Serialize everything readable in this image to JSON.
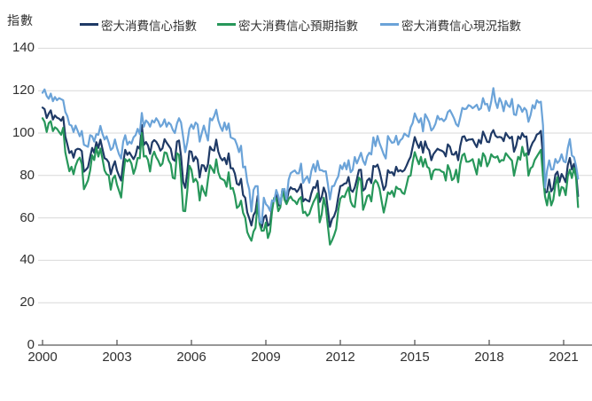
{
  "style": {
    "background": "#ffffff",
    "gridline_color": "#d9d9d9",
    "axis_color": "#595959",
    "text_color": "#333333"
  },
  "chart_data": {
    "type": "line",
    "title": "",
    "xlabel": "",
    "ylabel": "指數",
    "ylim": [
      0,
      140
    ],
    "y_ticks": [
      140,
      120,
      100,
      80,
      60,
      40,
      20,
      0
    ],
    "x_ticks": [
      2000,
      2003,
      2006,
      2009,
      2012,
      2015,
      2018,
      2021
    ],
    "grid": "horizontal",
    "legend_position": "top",
    "frequency": "monthly",
    "start_year": 2000,
    "series": [
      {
        "name": "密大消費信心指數",
        "color": "#1f3a66",
        "values": [
          112.0,
          111.3,
          107.1,
          109.2,
          110.7,
          106.4,
          108.3,
          107.3,
          106.8,
          105.8,
          107.6,
          98.4,
          94.7,
          90.6,
          91.5,
          88.4,
          92.0,
          92.6,
          92.4,
          91.5,
          81.8,
          82.7,
          83.9,
          88.8,
          93.0,
          90.7,
          95.7,
          93.0,
          96.9,
          92.4,
          88.1,
          87.6,
          86.1,
          80.6,
          84.2,
          86.7,
          82.4,
          79.9,
          77.6,
          86.0,
          92.1,
          89.7,
          90.9,
          89.3,
          87.7,
          89.6,
          93.7,
          92.6,
          103.8,
          94.4,
          95.8,
          94.2,
          90.2,
          95.6,
          96.7,
          95.9,
          94.2,
          91.7,
          92.8,
          97.1,
          95.5,
          94.1,
          92.6,
          87.7,
          86.9,
          96.0,
          96.5,
          89.1,
          76.9,
          74.2,
          81.6,
          91.5,
          91.2,
          86.7,
          88.9,
          87.4,
          79.1,
          84.9,
          84.7,
          82.0,
          85.4,
          93.6,
          92.1,
          91.7,
          96.9,
          91.3,
          88.4,
          87.1,
          88.3,
          85.3,
          90.4,
          83.4,
          83.4,
          80.9,
          76.1,
          75.5,
          78.4,
          70.8,
          69.5,
          62.6,
          59.8,
          56.4,
          61.2,
          63.0,
          70.3,
          57.6,
          55.3,
          60.1,
          61.2,
          56.3,
          57.3,
          65.1,
          68.7,
          70.8,
          66.0,
          65.7,
          73.5,
          70.6,
          67.4,
          72.5,
          74.4,
          73.6,
          73.6,
          72.2,
          73.6,
          76.0,
          67.8,
          68.9,
          68.2,
          67.7,
          71.6,
          74.5,
          74.2,
          77.5,
          67.5,
          69.8,
          74.3,
          71.5,
          63.7,
          55.8,
          59.5,
          60.8,
          63.7,
          69.9,
          75.0,
          75.3,
          76.2,
          76.4,
          79.3,
          73.2,
          72.3,
          74.3,
          78.3,
          82.6,
          82.7,
          72.9,
          73.8,
          77.6,
          78.6,
          76.4,
          84.5,
          84.1,
          85.1,
          82.1,
          77.5,
          73.2,
          75.1,
          82.5,
          81.2,
          81.6,
          80.0,
          84.1,
          81.9,
          82.5,
          81.8,
          82.5,
          84.6,
          86.9,
          88.8,
          93.6,
          98.1,
          95.4,
          93.0,
          95.9,
          90.7,
          96.1,
          93.1,
          91.9,
          87.2,
          90.0,
          91.3,
          92.6,
          92.0,
          91.7,
          91.0,
          89.0,
          94.7,
          93.5,
          90.0,
          89.8,
          91.2,
          87.2,
          93.8,
          98.2,
          98.5,
          96.3,
          96.9,
          97.0,
          97.1,
          95.0,
          93.4,
          96.8,
          95.1,
          100.7,
          98.5,
          95.9,
          95.7,
          99.7,
          101.4,
          98.8,
          98.0,
          98.2,
          97.9,
          96.2,
          100.1,
          98.6,
          97.5,
          98.3,
          91.2,
          93.8,
          98.4,
          97.2,
          100.0,
          98.2,
          98.4,
          89.8,
          93.2,
          95.5,
          96.8,
          99.3,
          99.8,
          101.0,
          89.1,
          71.8,
          72.3,
          78.1,
          72.5,
          74.1,
          80.4,
          81.8,
          76.9,
          80.7,
          79.0,
          76.8,
          84.9,
          88.3,
          82.9,
          85.5,
          81.2,
          70.3
        ]
      },
      {
        "name": "密大消費信心預期指數",
        "color": "#27975a",
        "values": [
          107.0,
          105.3,
          100.5,
          104.7,
          105.6,
          100.9,
          102.7,
          102.0,
          100.5,
          99.2,
          102.5,
          90.9,
          86.4,
          82.0,
          84.1,
          80.6,
          84.6,
          87.2,
          88.4,
          85.4,
          73.5,
          75.5,
          77.7,
          82.3,
          89.5,
          87.3,
          93.3,
          88.9,
          92.7,
          87.7,
          82.4,
          80.6,
          80.1,
          73.3,
          78.5,
          80.0,
          75.6,
          72.8,
          69.6,
          79.6,
          87.7,
          86.6,
          87.6,
          85.6,
          80.8,
          83.6,
          88.3,
          88.1,
          100.1,
          88.9,
          89.2,
          87.3,
          81.9,
          88.9,
          91.2,
          88.6,
          86.9,
          84.5,
          85.6,
          90.9,
          90.6,
          87.1,
          85.3,
          78.9,
          78.5,
          90.5,
          89.7,
          78.9,
          63.3,
          63.2,
          72.6,
          84.6,
          82.7,
          76.9,
          78.4,
          76.7,
          68.2,
          75.2,
          72.5,
          70.4,
          78.2,
          84.8,
          83.2,
          81.2,
          87.6,
          81.5,
          78.7,
          78.2,
          77.6,
          74.7,
          81.5,
          73.7,
          74.1,
          70.5,
          64.7,
          65.6,
          68.1,
          62.4,
          60.1,
          53.3,
          51.1,
          49.2,
          53.5,
          55.3,
          67.2,
          57.0,
          53.9,
          54.0,
          57.8,
          50.5,
          53.5,
          63.1,
          69.4,
          69.2,
          63.2,
          65.0,
          73.5,
          68.6,
          66.5,
          68.9,
          70.1,
          68.4,
          67.9,
          66.5,
          68.8,
          69.8,
          62.3,
          62.9,
          60.9,
          61.9,
          64.8,
          67.5,
          69.3,
          71.6,
          57.9,
          61.6,
          69.5,
          64.8,
          56.0,
          47.4,
          49.4,
          51.8,
          54.8,
          63.6,
          69.1,
          70.3,
          69.8,
          72.3,
          74.3,
          67.8,
          65.6,
          65.1,
          73.5,
          79.0,
          77.6,
          63.8,
          66.6,
          70.2,
          70.8,
          67.8,
          75.8,
          77.8,
          76.5,
          73.7,
          67.8,
          62.5,
          66.8,
          72.1,
          71.2,
          72.7,
          70.0,
          74.7,
          73.7,
          73.5,
          71.8,
          71.3,
          75.4,
          79.6,
          79.9,
          86.4,
          91.0,
          88.0,
          85.3,
          88.8,
          84.2,
          87.8,
          84.1,
          83.4,
          78.2,
          82.1,
          82.9,
          82.7,
          82.7,
          81.9,
          81.5,
          77.6,
          84.9,
          82.4,
          77.8,
          78.7,
          82.7,
          76.8,
          85.2,
          89.5,
          90.3,
          86.5,
          86.5,
          87.0,
          87.7,
          83.9,
          80.5,
          87.7,
          84.4,
          90.5,
          88.9,
          84.3,
          86.3,
          90.0,
          88.8,
          88.4,
          89.1,
          86.3,
          87.3,
          87.1,
          90.5,
          89.3,
          88.1,
          87.0,
          79.9,
          84.4,
          88.8,
          87.4,
          93.5,
          89.3,
          90.5,
          79.9,
          83.4,
          84.2,
          87.3,
          88.9,
          90.5,
          92.1,
          79.7,
          70.1,
          65.9,
          72.3,
          65.9,
          68.5,
          75.6,
          79.2,
          70.5,
          74.6,
          74.0,
          70.7,
          79.7,
          82.7,
          78.8,
          83.5,
          79.0,
          65.1
        ]
      },
      {
        "name": "密大消費信心現況指數",
        "color": "#6ba3d8",
        "values": [
          119.0,
          120.6,
          117.5,
          116.2,
          118.6,
          115.0,
          117.0,
          115.5,
          116.5,
          116.0,
          115.5,
          110.0,
          108.0,
          104.0,
          103.5,
          100.5,
          103.5,
          101.0,
          98.5,
          101.0,
          94.5,
          94.0,
          93.5,
          99.0,
          98.5,
          96.0,
          99.5,
          99.2,
          103.4,
          99.6,
          97.0,
          98.5,
          95.5,
          92.0,
          93.0,
          97.0,
          93.0,
          90.0,
          88.0,
          96.0,
          99.0,
          94.5,
          96.0,
          95.0,
          98.0,
          99.0,
          102.0,
          99.5,
          109.5,
          103.0,
          106.0,
          105.0,
          103.0,
          106.0,
          105.0,
          107.0,
          105.5,
          103.0,
          104.0,
          106.5,
          103.0,
          105.0,
          104.0,
          101.5,
          100.0,
          104.5,
          107.0,
          105.0,
          98.0,
          91.0,
          95.5,
          102.0,
          104.0,
          102.0,
          105.0,
          104.0,
          96.0,
          100.0,
          103.5,
          100.0,
          96.5,
          107.0,
          106.0,
          108.0,
          111.0,
          106.0,
          103.0,
          101.0,
          105.0,
          101.5,
          104.5,
          98.0,
          97.5,
          97.0,
          94.5,
          91.0,
          94.0,
          83.8,
          84.2,
          77.0,
          73.3,
          63.0,
          73.1,
          75.0,
          75.0,
          58.4,
          57.5,
          69.5,
          66.5,
          65.5,
          63.3,
          68.3,
          67.7,
          73.2,
          70.5,
          66.6,
          73.4,
          73.7,
          68.8,
          78.0,
          81.1,
          81.8,
          82.4,
          81.0,
          81.0,
          85.6,
          76.5,
          78.3,
          79.6,
          76.6,
          82.1,
          85.3,
          81.8,
          86.9,
          82.5,
          82.5,
          81.9,
          82.0,
          75.8,
          68.7,
          74.9,
          75.1,
          77.6,
          79.6,
          84.8,
          83.0,
          86.0,
          82.9,
          87.2,
          81.5,
          82.7,
          88.7,
          85.7,
          88.1,
          90.7,
          87.0,
          85.0,
          89.0,
          90.7,
          89.9,
          98.0,
          93.8,
          98.6,
          95.2,
          92.6,
          89.9,
          88.0,
          98.6,
          96.8,
          95.4,
          95.7,
          98.7,
          94.5,
          96.6,
          97.4,
          99.8,
          98.9,
          98.3,
          102.7,
          104.8,
          109.3,
          106.9,
          105.0,
          107.0,
          100.8,
          108.9,
          107.2,
          105.1,
          101.2,
          102.3,
          104.3,
          108.1,
          106.4,
          106.8,
          105.6,
          106.7,
          109.9,
          110.8,
          109.0,
          107.0,
          104.2,
          103.2,
          107.3,
          111.9,
          111.3,
          111.5,
          113.2,
          112.7,
          111.7,
          112.5,
          113.4,
          110.9,
          111.7,
          116.5,
          113.5,
          113.8,
          110.5,
          114.9,
          121.2,
          114.9,
          111.8,
          116.5,
          114.4,
          110.3,
          115.2,
          113.1,
          112.3,
          116.1,
          108.8,
          108.5,
          113.3,
          112.3,
          110.0,
          111.9,
          110.7,
          105.3,
          108.5,
          113.2,
          111.6,
          115.5,
          114.4,
          114.8,
          103.7,
          74.3,
          82.3,
          87.1,
          82.8,
          82.9,
          87.8,
          85.9,
          87.0,
          90.0,
          86.7,
          86.2,
          93.0,
          97.2,
          89.4,
          88.6,
          84.5,
          78.5
        ]
      }
    ]
  }
}
